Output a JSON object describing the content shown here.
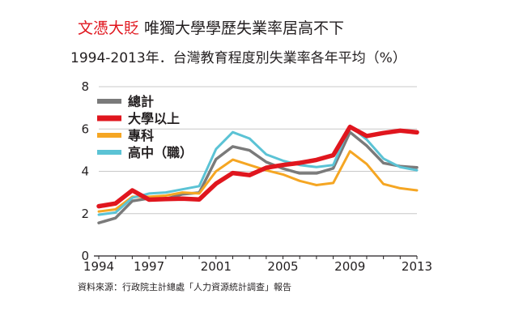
{
  "header": {
    "tag": "文憑大貶",
    "headline": "唯獨大學學歷失業率居高不下",
    "subtitle": "1994-2013年．台灣教育程度別失業率各年平均（%）"
  },
  "footer": {
    "source": "資料來源：行政院主計總處「人力資源統計調查」報告"
  },
  "colors": {
    "total": "#7a7a7a",
    "university": "#e0161e",
    "college": "#f5a623",
    "highschool": "#5bc3d5",
    "grid": "#c8c8c8",
    "axis": "#231f20"
  },
  "chart_data": {
    "type": "line",
    "title": "唯獨大學學歷失業率居高不下",
    "subtitle": "1994-2013年．台灣教育程度別失業率各年平均（%）",
    "ylabel": "",
    "xlabel": "",
    "x": [
      1994,
      1995,
      1996,
      1997,
      1998,
      1999,
      2000,
      2001,
      2002,
      2003,
      2004,
      2005,
      2006,
      2007,
      2008,
      2009,
      2010,
      2011,
      2012,
      2013
    ],
    "xticks": [
      "1994",
      "1997",
      "2001",
      "2005",
      "2009",
      "2013"
    ],
    "yticks": [
      "0",
      "2",
      "4",
      "6",
      "8"
    ],
    "ylim": [
      0,
      8
    ],
    "grid": true,
    "legend_position": "top-left",
    "series": [
      {
        "key": "total",
        "name": "總計",
        "values": [
          1.56,
          1.79,
          2.6,
          2.72,
          2.69,
          2.92,
          2.99,
          4.57,
          5.17,
          4.99,
          4.44,
          4.13,
          3.91,
          3.91,
          4.14,
          5.85,
          5.21,
          4.39,
          4.24,
          4.18
        ]
      },
      {
        "key": "university",
        "name": "大學以上",
        "values": [
          2.35,
          2.48,
          3.1,
          2.66,
          2.69,
          2.71,
          2.67,
          3.42,
          3.92,
          3.82,
          4.17,
          4.3,
          4.4,
          4.54,
          4.76,
          6.1,
          5.67,
          5.81,
          5.92,
          5.84
        ]
      },
      {
        "key": "college",
        "name": "專科",
        "values": [
          2.1,
          2.2,
          2.8,
          2.8,
          2.85,
          3.0,
          2.95,
          4.0,
          4.55,
          4.3,
          4.05,
          3.85,
          3.55,
          3.35,
          3.45,
          4.95,
          4.35,
          3.4,
          3.2,
          3.1
        ]
      },
      {
        "key": "highschool",
        "name": "高中（職）",
        "values": [
          1.95,
          2.05,
          2.75,
          2.95,
          3.0,
          3.15,
          3.3,
          5.05,
          5.85,
          5.55,
          4.8,
          4.5,
          4.3,
          4.2,
          4.3,
          6.15,
          5.5,
          4.6,
          4.2,
          4.05
        ]
      }
    ]
  }
}
